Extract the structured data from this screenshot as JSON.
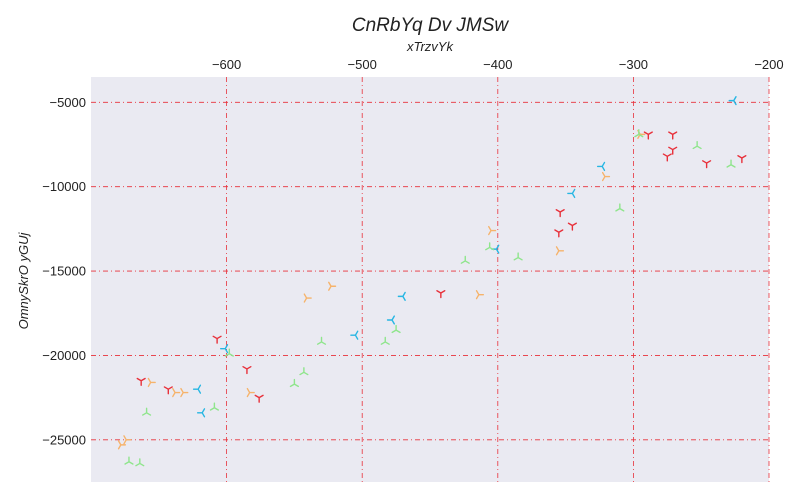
{
  "chart_data": {
    "type": "scatter",
    "title": "CnRbYq Dv JMSw",
    "xlabel": "xTrzvYk",
    "ylabel": "OmnySkrO yGUj",
    "x_axis_position": "top",
    "xlim": [
      -700,
      -200
    ],
    "ylim": [
      -27500,
      -3500
    ],
    "xticks": [
      -600,
      -500,
      -400,
      -300,
      -200
    ],
    "yticks": [
      -5000,
      -10000,
      -15000,
      -20000,
      -25000
    ],
    "grid": true,
    "grid_color": "#e8303a",
    "background_color": "#eaeaf2",
    "marker": "tri",
    "legend": "none",
    "series": [
      {
        "color": "#e8303a",
        "marker_orientation": "down",
        "points": [
          [
            -289,
            -6900
          ],
          [
            -271,
            -6900
          ],
          [
            -271,
            -7800
          ],
          [
            -275,
            -8200
          ],
          [
            -246,
            -8600
          ],
          [
            -220,
            -8300
          ],
          [
            -354,
            -11500
          ],
          [
            -345,
            -12300
          ],
          [
            -355,
            -12700
          ],
          [
            -442,
            -16300
          ],
          [
            -607,
            -19000
          ],
          [
            -585,
            -20800
          ],
          [
            -576,
            -22500
          ],
          [
            -643,
            -22000
          ],
          [
            -663,
            -21500
          ]
        ]
      },
      {
        "color": "#f6b36b",
        "marker_orientation": "right",
        "points": [
          [
            -295,
            -6900
          ],
          [
            -321,
            -9400
          ],
          [
            -405,
            -12600
          ],
          [
            -355,
            -13800
          ],
          [
            -414,
            -16400
          ],
          [
            -523,
            -15900
          ],
          [
            -541,
            -16600
          ],
          [
            -583,
            -22200
          ],
          [
            -632,
            -22200
          ],
          [
            -638,
            -22200
          ],
          [
            -656,
            -21600
          ],
          [
            -674,
            -25000
          ],
          [
            -678,
            -25300
          ]
        ]
      },
      {
        "color": "#26b6e3",
        "marker_orientation": "left",
        "points": [
          [
            -226,
            -4900
          ],
          [
            -323,
            -8800
          ],
          [
            -345,
            -10400
          ],
          [
            -401,
            -13700
          ],
          [
            -470,
            -16500
          ],
          [
            -478,
            -17900
          ],
          [
            -505,
            -18800
          ],
          [
            -601,
            -19600
          ],
          [
            -621,
            -22000
          ],
          [
            -618,
            -23400
          ]
        ]
      },
      {
        "color": "#8fe58c",
        "marker_orientation": "up",
        "points": [
          [
            -296,
            -6900
          ],
          [
            -253,
            -7600
          ],
          [
            -228,
            -8700
          ],
          [
            -310,
            -11300
          ],
          [
            -385,
            -14200
          ],
          [
            -424,
            -14400
          ],
          [
            -406,
            -13600
          ],
          [
            -475,
            -18500
          ],
          [
            -483,
            -19200
          ],
          [
            -530,
            -19200
          ],
          [
            -543,
            -21000
          ],
          [
            -550,
            -21700
          ],
          [
            -609,
            -23100
          ],
          [
            -598,
            -19900
          ],
          [
            -659,
            -23400
          ],
          [
            -672,
            -26300
          ],
          [
            -664,
            -26400
          ]
        ]
      }
    ]
  }
}
